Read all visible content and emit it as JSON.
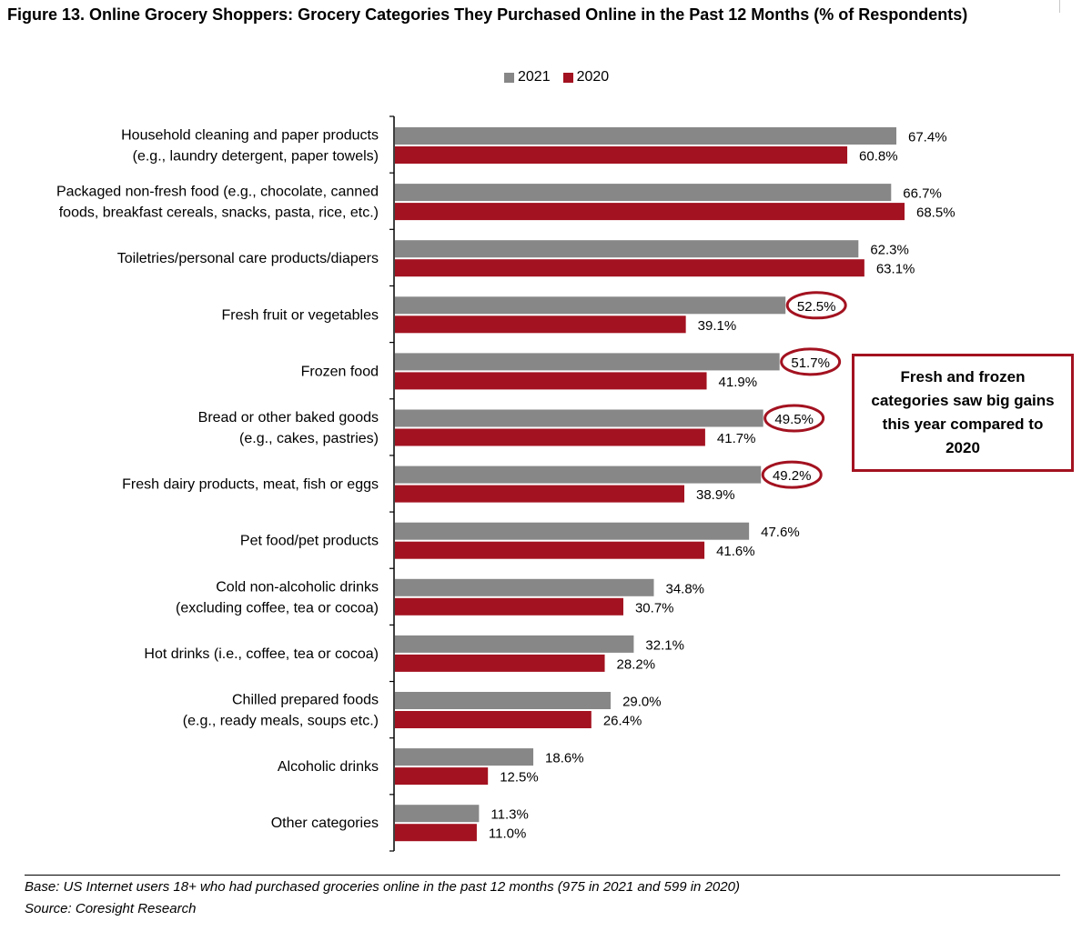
{
  "figure": {
    "title": "Figure 13. Online Grocery Shoppers: Grocery Categories They Purchased Online in the Past 12 Months (% of Respondents)",
    "callout": "Fresh and frozen categories saw big gains this year compared to 2020",
    "base_note": "Base: US Internet users 18+ who had purchased groceries online in the past 12 months (975 in 2021 and 599 in 2020)",
    "source_note": "Source: Coresight Research"
  },
  "colors": {
    "2021": "#878787",
    "2020": "#a31220",
    "highlight": "#a31220"
  },
  "chart_data": {
    "type": "bar",
    "orientation": "horizontal",
    "title": "Figure 13. Online Grocery Shoppers: Grocery Categories They Purchased Online in the Past 12 Months (% of Respondents)",
    "legend_position": "top",
    "grid": false,
    "xlim": [
      0,
      68.5
    ],
    "value_format": "percent_one_decimal",
    "categories": [
      [
        "Household cleaning and paper products",
        "(e.g., laundry detergent, paper towels)"
      ],
      [
        "Packaged non-fresh food (e.g., chocolate, canned",
        "foods, breakfast cereals, snacks, pasta, rice, etc.)"
      ],
      [
        "Toiletries/personal care products/diapers"
      ],
      [
        "Fresh fruit or vegetables"
      ],
      [
        "Frozen food"
      ],
      [
        "Bread or other baked goods",
        "(e.g., cakes, pastries)"
      ],
      [
        "Fresh dairy products, meat, fish or eggs"
      ],
      [
        "Pet food/pet products"
      ],
      [
        "Cold non-alcoholic drinks",
        "(excluding coffee, tea or cocoa)"
      ],
      [
        "Hot drinks (i.e., coffee, tea or cocoa)"
      ],
      [
        "Chilled prepared foods",
        "(e.g., ready meals, soups etc.)"
      ],
      [
        "Alcoholic drinks"
      ],
      [
        "Other categories"
      ]
    ],
    "series": [
      {
        "name": "2021",
        "values": [
          67.4,
          66.7,
          62.3,
          52.5,
          51.7,
          49.5,
          49.2,
          47.6,
          34.8,
          32.1,
          29.0,
          18.6,
          11.3
        ]
      },
      {
        "name": "2020",
        "values": [
          60.8,
          68.5,
          63.1,
          39.1,
          41.9,
          41.7,
          38.9,
          41.6,
          30.7,
          28.2,
          26.4,
          12.5,
          11.0
        ]
      }
    ],
    "data_labels": {
      "2021": [
        "67.4%",
        "66.7%",
        "62.3%",
        "52.5%",
        "51.7%",
        "49.5%",
        "49.2%",
        "47.6%",
        "34.8%",
        "32.1%",
        "29.0%",
        "18.6%",
        "11.3%"
      ],
      "2020": [
        "60.8%",
        "68.5%",
        "63.1%",
        "39.1%",
        "41.9%",
        "41.7%",
        "38.9%",
        "41.6%",
        "30.7%",
        "28.2%",
        "26.4%",
        "12.5%",
        "11.0%"
      ]
    },
    "highlighted_2021_categories": [
      3,
      4,
      5,
      6
    ]
  }
}
